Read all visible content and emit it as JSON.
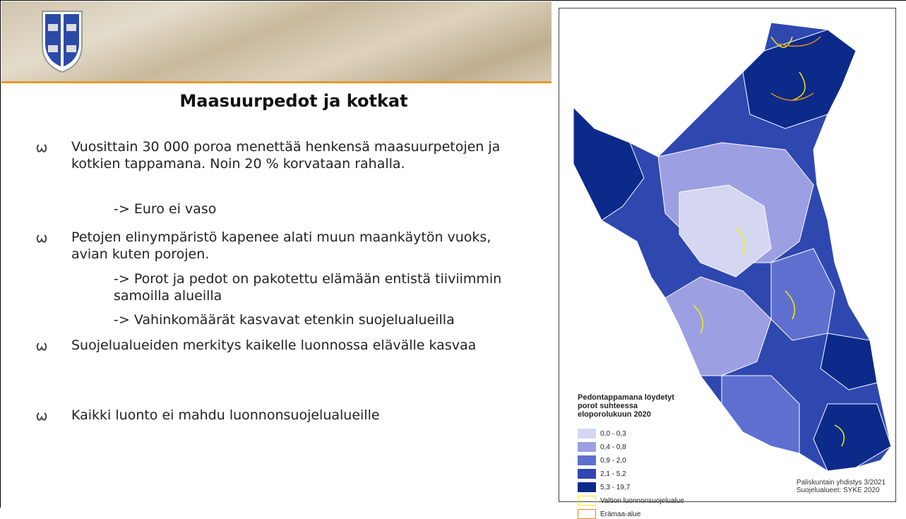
{
  "slide": {
    "title": "Maasuurpedot ja kotkat",
    "bullets": [
      {
        "text": "Vuosittain 30 000 poroa menettää henkensä maasuurpetojen ja kotkien tappamana. Noin 20 % korvataan rahalla.",
        "subitems": [
          "-> Euro ei vaso"
        ]
      },
      {
        "text": "Petojen elinympäristö kapenee alati muun maankäytön vuoks, avian kuten porojen.",
        "subitems": [
          "-> Porot ja pedot on pakotettu elämään entistä tiiviimmin samoilla alueilla",
          "-> Vahinkomäärät kasvavat etenkin suojelualueilla"
        ]
      },
      {
        "text": "Suojelualueiden merkitys kaikelle luonnossa elävälle kasvaa",
        "subitems": []
      },
      {
        "text": "Kaikki luonto ei mahdu luonnonsuojelualueille",
        "subitems": []
      }
    ]
  },
  "map": {
    "legend_title": "Pedontappamana löydetyt porot suhteessa eloporolukuun 2020",
    "classes": [
      {
        "label": "0,0 - 0,3",
        "color": "#d4d6f2"
      },
      {
        "label": "0,4 - 0,8",
        "color": "#9d9fe3"
      },
      {
        "label": "0,9 - 2,0",
        "color": "#5f6fcf"
      },
      {
        "label": "2,1 - 5,2",
        "color": "#2e48b0"
      },
      {
        "label": "5,3 - 19,7",
        "color": "#0c2a8a"
      }
    ],
    "outlines": [
      {
        "label": "Valtion luonnonsuojelualue",
        "color": "#f2f200"
      },
      {
        "label": "Erämaa-alue",
        "color": "#e08a1e"
      }
    ],
    "credits": [
      "Paliskuntain yhdistys 3/2021",
      "Suojelualueet: SYKE 2020"
    ]
  }
}
